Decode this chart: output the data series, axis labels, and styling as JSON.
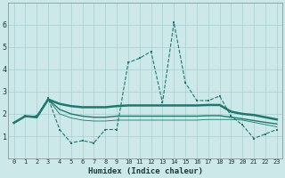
{
  "x": [
    0,
    1,
    2,
    3,
    4,
    5,
    6,
    7,
    8,
    9,
    10,
    11,
    12,
    13,
    14,
    15,
    16,
    17,
    18,
    19,
    20,
    21,
    22,
    23
  ],
  "series1": [
    1.6,
    1.9,
    1.9,
    2.7,
    1.3,
    0.7,
    0.8,
    0.7,
    1.3,
    1.3,
    4.3,
    4.5,
    4.8,
    2.5,
    6.1,
    3.4,
    2.6,
    2.6,
    2.8,
    1.9,
    1.5,
    0.9,
    1.1,
    1.3
  ],
  "series2_line": [
    1.6,
    1.9,
    1.85,
    2.65,
    2.45,
    2.35,
    2.3,
    2.3,
    2.3,
    2.35,
    2.38,
    2.38,
    2.38,
    2.38,
    2.38,
    2.38,
    2.38,
    2.4,
    2.4,
    2.1,
    2.0,
    1.95,
    1.85,
    1.75
  ],
  "series3_line": [
    1.6,
    1.9,
    1.85,
    2.65,
    2.2,
    2.0,
    1.9,
    1.85,
    1.85,
    1.9,
    1.9,
    1.9,
    1.9,
    1.9,
    1.9,
    1.9,
    1.9,
    1.92,
    1.92,
    1.85,
    1.78,
    1.7,
    1.62,
    1.55
  ],
  "series4_line": [
    1.6,
    1.9,
    1.85,
    2.65,
    2.0,
    1.82,
    1.72,
    1.68,
    1.68,
    1.72,
    1.72,
    1.72,
    1.72,
    1.72,
    1.72,
    1.72,
    1.72,
    1.75,
    1.75,
    1.75,
    1.72,
    1.62,
    1.52,
    1.42
  ],
  "line_color": "#1a7a6e",
  "bg_color": "#cce8e8",
  "grid_color": "#aacece",
  "xlabel": "Humidex (Indice chaleur)",
  "ylim": [
    0,
    7
  ],
  "xlim": [
    -0.5,
    23.5
  ],
  "yticks": [
    1,
    2,
    3,
    4,
    5,
    6
  ],
  "xticks": [
    0,
    1,
    2,
    3,
    4,
    5,
    6,
    7,
    8,
    9,
    10,
    11,
    12,
    13,
    14,
    15,
    16,
    17,
    18,
    19,
    20,
    21,
    22,
    23
  ]
}
